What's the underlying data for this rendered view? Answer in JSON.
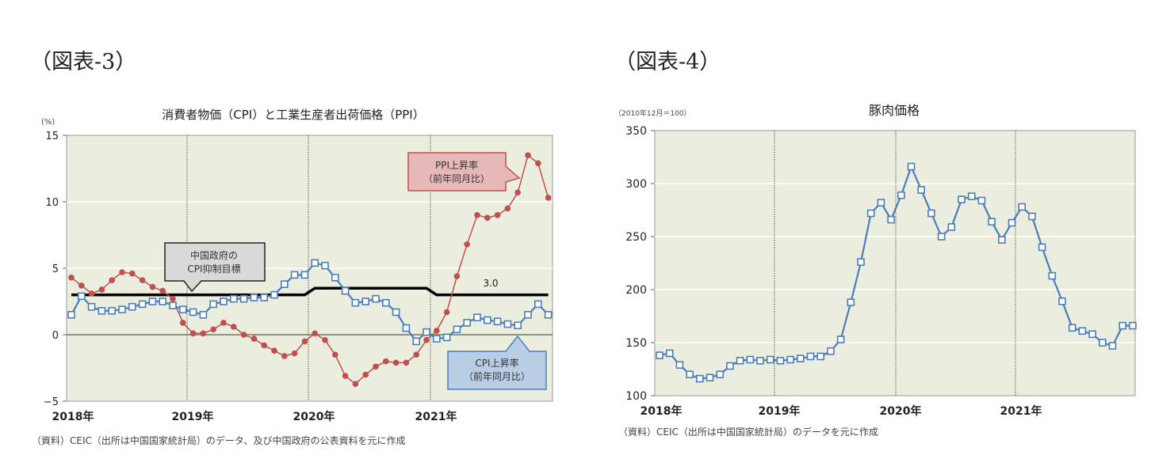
{
  "figures": {
    "fig3_label": "（図表-3）",
    "fig4_label": "（図表-4）"
  },
  "chart_data": [
    {
      "type": "line",
      "title": "消費者物価（CPI）と工業生産者出荷価格（PPI）",
      "ylabel": "(%)",
      "xlabel": "",
      "ylim": [
        -5,
        15
      ],
      "yticks": [
        15,
        10,
        5,
        0,
        -5
      ],
      "xtick_labels": [
        "2018年",
        "2019年",
        "2020年",
        "2021年"
      ],
      "grid": true,
      "x": [
        "2018-01",
        "2018-02",
        "2018-03",
        "2018-04",
        "2018-05",
        "2018-06",
        "2018-07",
        "2018-08",
        "2018-09",
        "2018-10",
        "2018-11",
        "2018-12",
        "2019-01",
        "2019-02",
        "2019-03",
        "2019-04",
        "2019-05",
        "2019-06",
        "2019-07",
        "2019-08",
        "2019-09",
        "2019-10",
        "2019-11",
        "2019-12",
        "2020-01",
        "2020-02",
        "2020-03",
        "2020-04",
        "2020-05",
        "2020-06",
        "2020-07",
        "2020-08",
        "2020-09",
        "2020-10",
        "2020-11",
        "2020-12",
        "2021-01",
        "2021-02",
        "2021-03",
        "2021-04",
        "2021-05",
        "2021-06",
        "2021-07",
        "2021-08",
        "2021-09",
        "2021-10",
        "2021-11",
        "2021-12"
      ],
      "series": [
        {
          "name": "PPI上昇率（前年同月比）",
          "color": "#c0504d",
          "marker": "circle",
          "values": [
            4.3,
            3.7,
            3.1,
            3.4,
            4.1,
            4.7,
            4.6,
            4.1,
            3.6,
            3.3,
            2.7,
            0.9,
            0.1,
            0.1,
            0.4,
            0.9,
            0.6,
            0.0,
            -0.3,
            -0.8,
            -1.2,
            -1.6,
            -1.4,
            -0.5,
            0.1,
            -0.4,
            -1.5,
            -3.1,
            -3.7,
            -3.0,
            -2.4,
            -2.0,
            -2.1,
            -2.1,
            -1.5,
            -0.4,
            0.3,
            1.7,
            4.4,
            6.8,
            9.0,
            8.8,
            9.0,
            9.5,
            10.7,
            13.5,
            12.9,
            10.3
          ]
        },
        {
          "name": "CPI上昇率（前年同月比）",
          "color": "#4a7ebb",
          "marker": "square",
          "values": [
            1.5,
            2.9,
            2.1,
            1.8,
            1.8,
            1.9,
            2.1,
            2.3,
            2.5,
            2.5,
            2.2,
            1.9,
            1.7,
            1.5,
            2.3,
            2.5,
            2.7,
            2.7,
            2.8,
            2.8,
            3.0,
            3.8,
            4.5,
            4.5,
            5.4,
            5.2,
            4.3,
            3.3,
            2.4,
            2.5,
            2.7,
            2.4,
            1.7,
            0.5,
            -0.5,
            0.2,
            -0.3,
            -0.2,
            0.4,
            0.9,
            1.3,
            1.1,
            1.0,
            0.8,
            0.7,
            1.5,
            2.3,
            1.5
          ]
        },
        {
          "name": "中国政府のCPI抑制目標",
          "color": "#000000",
          "marker": "none",
          "values": [
            3.0,
            3.0,
            3.0,
            3.0,
            3.0,
            3.0,
            3.0,
            3.0,
            3.0,
            3.0,
            3.0,
            3.0,
            3.0,
            3.0,
            3.0,
            3.0,
            3.0,
            3.0,
            3.0,
            3.0,
            3.0,
            3.0,
            3.0,
            3.0,
            3.5,
            3.5,
            3.5,
            3.5,
            3.5,
            3.5,
            3.5,
            3.5,
            3.5,
            3.5,
            3.5,
            3.5,
            3.0,
            3.0,
            3.0,
            3.0,
            3.0,
            3.0,
            3.0,
            3.0,
            3.0,
            3.0,
            3.0,
            3.0
          ]
        }
      ],
      "annotations": [
        {
          "text_lines": [
            "PPI上昇率",
            "（前年同月比）"
          ],
          "style": "red-callout"
        },
        {
          "text_lines": [
            "CPI上昇率",
            "（前年同月比）"
          ],
          "style": "blue-callout"
        },
        {
          "text_lines": [
            "中国政府の",
            "CPI抑制目標"
          ],
          "style": "gray-callout"
        },
        {
          "text": "3.0",
          "style": "label"
        }
      ],
      "source_note": "（資料）CEIC（出所は中国国家統計局）のデータ、及び中国政府の公表資料を元に作成"
    },
    {
      "type": "line",
      "title": "豚肉価格",
      "ylabel": "（2010年12月＝100）",
      "xlabel": "",
      "ylim": [
        100,
        350
      ],
      "yticks": [
        350,
        300,
        250,
        200,
        150,
        100
      ],
      "xtick_labels": [
        "2018年",
        "2019年",
        "2020年",
        "2021年"
      ],
      "grid": true,
      "x": [
        "2018-01",
        "2018-02",
        "2018-03",
        "2018-04",
        "2018-05",
        "2018-06",
        "2018-07",
        "2018-08",
        "2018-09",
        "2018-10",
        "2018-11",
        "2018-12",
        "2019-01",
        "2019-02",
        "2019-03",
        "2019-04",
        "2019-05",
        "2019-06",
        "2019-07",
        "2019-08",
        "2019-09",
        "2019-10",
        "2019-11",
        "2019-12",
        "2020-01",
        "2020-02",
        "2020-03",
        "2020-04",
        "2020-05",
        "2020-06",
        "2020-07",
        "2020-08",
        "2020-09",
        "2020-10",
        "2020-11",
        "2020-12",
        "2021-01",
        "2021-02",
        "2021-03",
        "2021-04",
        "2021-05",
        "2021-06",
        "2021-07",
        "2021-08",
        "2021-09",
        "2021-10",
        "2021-11",
        "2021-12"
      ],
      "series": [
        {
          "name": "豚肉価格",
          "color": "#4a7ebb",
          "marker": "square",
          "values": [
            138,
            140,
            129,
            120,
            116,
            117,
            120,
            128,
            133,
            134,
            133,
            134,
            133,
            134,
            135,
            137,
            137,
            142,
            153,
            188,
            226,
            272,
            282,
            266,
            289,
            316,
            294,
            272,
            250,
            259,
            285,
            288,
            284,
            264,
            247,
            263,
            278,
            269,
            240,
            213,
            189,
            164,
            161,
            158,
            150,
            147,
            166,
            166
          ]
        }
      ],
      "source_note": "（資料）CEIC（出所は中国国家統計局）のデータを元に作成"
    }
  ]
}
